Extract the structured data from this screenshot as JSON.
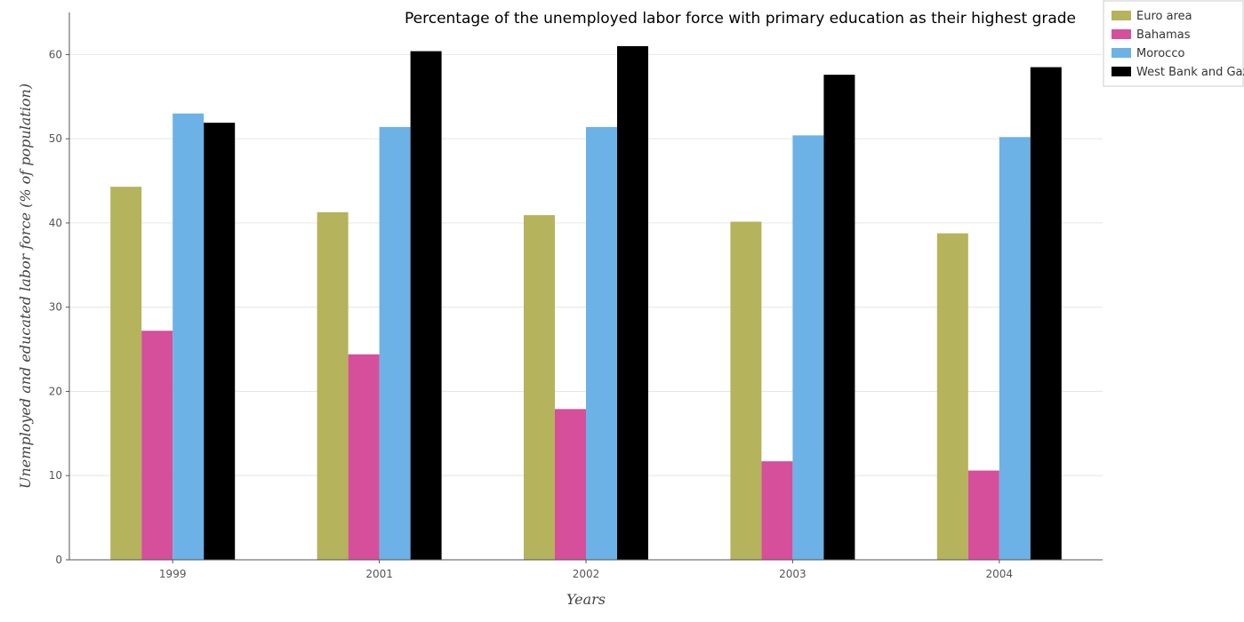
{
  "chart_data": {
    "type": "bar",
    "title": "Percentage of the unemployed labor force with primary education as their highest grade",
    "xlabel": "Years",
    "ylabel": "Unemployed and educated labor force (% of population)",
    "categories": [
      "1999",
      "2001",
      "2002",
      "2003",
      "2004"
    ],
    "ylim": [
      0,
      65
    ],
    "yticks": [
      0,
      10,
      20,
      30,
      40,
      50,
      60
    ],
    "grid": true,
    "legend_position": "top-right",
    "series": [
      {
        "name": "Euro area",
        "color": "#b5b35c",
        "values": [
          44.3,
          41.28,
          40.93,
          40.15,
          38.77
        ]
      },
      {
        "name": "Bahamas",
        "color": "#d64f9a",
        "values": [
          27.2,
          24.4,
          17.9,
          11.7,
          10.6
        ]
      },
      {
        "name": "Morocco",
        "color": "#6cb2e6",
        "values": [
          53.0,
          51.4,
          51.4,
          50.4,
          50.2
        ]
      },
      {
        "name": "West Bank and Gaza",
        "color": "#000000",
        "values": [
          51.9,
          60.4,
          61.0,
          57.6,
          58.5
        ]
      }
    ]
  }
}
